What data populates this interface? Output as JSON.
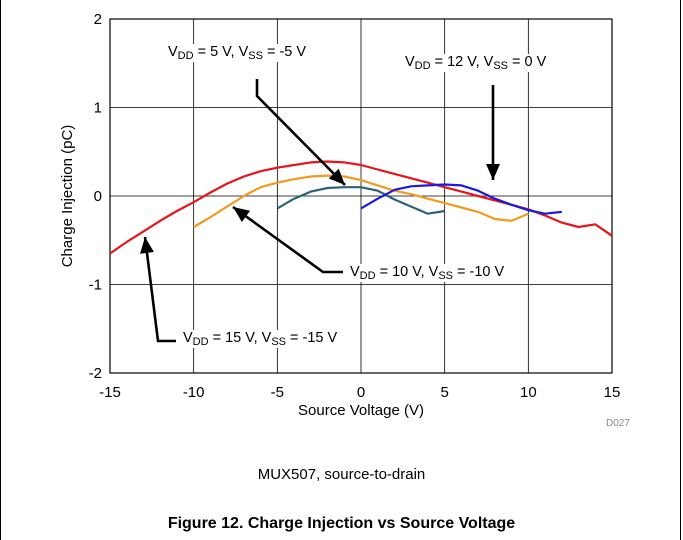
{
  "chart_data": {
    "type": "line",
    "xlabel": "Source Voltage (V)",
    "ylabel": "Charge Injection (pC)",
    "xlim": [
      -15,
      15
    ],
    "ylim": [
      -2,
      2
    ],
    "xticks": [
      "-15",
      "-10",
      "-5",
      "0",
      "5",
      "10",
      "15"
    ],
    "yticks": [
      "2",
      "1",
      "0",
      "-1",
      "-2"
    ],
    "grid": true,
    "series": [
      {
        "name": "VDD = 15 V, VSS = -15 V",
        "color": "#e8141a",
        "x": [
          -15,
          -14,
          -13,
          -12,
          -11,
          -10,
          -9,
          -8,
          -7,
          -6,
          -5,
          -4,
          -3,
          -2,
          -1,
          0,
          1,
          2,
          3,
          4,
          5,
          6,
          7,
          8,
          9,
          10,
          11,
          12,
          13,
          14,
          15
        ],
        "y": [
          -0.65,
          -0.52,
          -0.4,
          -0.28,
          -0.17,
          -0.07,
          0.04,
          0.14,
          0.22,
          0.28,
          0.32,
          0.35,
          0.38,
          0.39,
          0.38,
          0.35,
          0.3,
          0.25,
          0.2,
          0.15,
          0.1,
          0.05,
          0.0,
          -0.05,
          -0.1,
          -0.15,
          -0.22,
          -0.3,
          -0.35,
          -0.32,
          -0.45
        ]
      },
      {
        "name": "VDD = 10 V, VSS = -10 V",
        "color": "#f39a1e",
        "x": [
          -10,
          -9,
          -8,
          -7,
          -6,
          -5,
          -4,
          -3,
          -2,
          -1,
          0,
          1,
          2,
          3,
          4,
          5,
          6,
          7,
          8,
          9,
          10
        ],
        "y": [
          -0.35,
          -0.24,
          -0.12,
          0.0,
          0.1,
          0.15,
          0.19,
          0.22,
          0.23,
          0.22,
          0.18,
          0.12,
          0.06,
          0.02,
          -0.03,
          -0.08,
          -0.13,
          -0.18,
          -0.26,
          -0.28,
          -0.2
        ]
      },
      {
        "name": "VDD = 5 V, VSS = -5 V",
        "color": "#2e6178",
        "x": [
          -5,
          -4,
          -3,
          -2,
          -1,
          0,
          1,
          2,
          3,
          4,
          5
        ],
        "y": [
          -0.14,
          -0.03,
          0.05,
          0.09,
          0.1,
          0.1,
          0.06,
          -0.04,
          -0.12,
          -0.2,
          -0.17
        ]
      },
      {
        "name": "VDD = 12 V, VSS = 0 V",
        "color": "#1a1ae0",
        "x": [
          0,
          1,
          2,
          3,
          4,
          5,
          6,
          7,
          8,
          9,
          10,
          11,
          12
        ],
        "y": [
          -0.14,
          -0.03,
          0.07,
          0.11,
          0.12,
          0.13,
          0.12,
          0.06,
          -0.03,
          -0.1,
          -0.16,
          -0.2,
          -0.18
        ]
      }
    ]
  },
  "annotations": [
    {
      "main": "V",
      "sub1": "DD",
      "mid": " = 5 V, V",
      "sub2": "SS",
      "end": " = -5 V"
    },
    {
      "main": "V",
      "sub1": "DD",
      "mid": " = 12 V, V",
      "sub2": "SS",
      "end": " = 0 V"
    },
    {
      "main": "V",
      "sub1": "DD",
      "mid": " = 10 V, V",
      "sub2": "SS",
      "end": " = -10 V"
    },
    {
      "main": "V",
      "sub1": "DD",
      "mid": " = 15 V, V",
      "sub2": "SS",
      "end": " = -15 V"
    }
  ],
  "code": "D027",
  "subcaption": "MUX507, source-to-drain",
  "figure_caption": "Figure 12. Charge Injection vs Source Voltage"
}
